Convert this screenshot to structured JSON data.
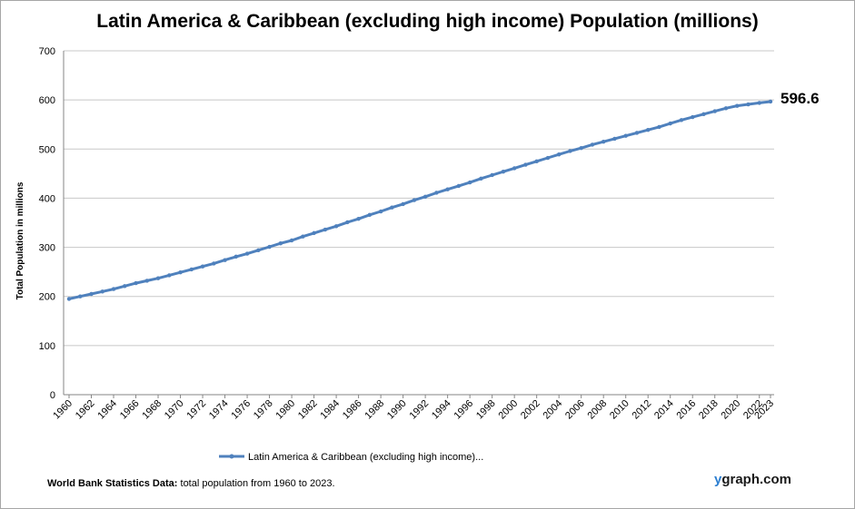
{
  "chart_data": {
    "type": "line",
    "title": "Latin America & Caribbean (excluding high income) Population (millions)",
    "xlabel": "",
    "ylabel": "Total Population  in millions",
    "ylim": [
      0,
      700
    ],
    "yticks": [
      0,
      100,
      200,
      300,
      400,
      500,
      600,
      700
    ],
    "xlim": [
      1960,
      2023
    ],
    "xtick_labels": [
      "1960",
      "1962",
      "1964",
      "1966",
      "1968",
      "1970",
      "1972",
      "1974",
      "1976",
      "1978",
      "1980",
      "1982",
      "1984",
      "1986",
      "1988",
      "1990",
      "1992",
      "1994",
      "1996",
      "1998",
      "2000",
      "2002",
      "2004",
      "2006",
      "2008",
      "2010",
      "2012",
      "2014",
      "2016",
      "2018",
      "2020",
      "2022",
      "2023"
    ],
    "grid": true,
    "legend_position": "bottom",
    "series": [
      {
        "name": "Latin America & Caribbean (excluding high income)...",
        "color": "#4f81bd",
        "x": [
          1960,
          1961,
          1962,
          1963,
          1964,
          1965,
          1966,
          1967,
          1968,
          1969,
          1970,
          1971,
          1972,
          1973,
          1974,
          1975,
          1976,
          1977,
          1978,
          1979,
          1980,
          1981,
          1982,
          1983,
          1984,
          1985,
          1986,
          1987,
          1988,
          1989,
          1990,
          1991,
          1992,
          1993,
          1994,
          1995,
          1996,
          1997,
          1998,
          1999,
          2000,
          2001,
          2002,
          2003,
          2004,
          2005,
          2006,
          2007,
          2008,
          2009,
          2010,
          2011,
          2012,
          2013,
          2014,
          2015,
          2016,
          2017,
          2018,
          2019,
          2020,
          2021,
          2022,
          2023
        ],
        "values": [
          195,
          200,
          205,
          210,
          215,
          221,
          227,
          232,
          237,
          243,
          249,
          255,
          261,
          267,
          274,
          281,
          287,
          294,
          301,
          308,
          314,
          322,
          329,
          336,
          343,
          351,
          358,
          366,
          373,
          381,
          388,
          396,
          403,
          411,
          418,
          425,
          432,
          440,
          447,
          454,
          461,
          468,
          475,
          482,
          489,
          496,
          502,
          509,
          515,
          521,
          527,
          533,
          539,
          545,
          552,
          559,
          565,
          571,
          577,
          583,
          588,
          591,
          594,
          596.6
        ]
      }
    ],
    "annotations": [
      {
        "text": "596.6",
        "x": 2023,
        "y": 596.6
      }
    ]
  },
  "footer": {
    "source_label": "World Bank Statistics Data:",
    "source_text": " total population from 1960 to 2023.",
    "brand_y": "y",
    "brand_rest": "graph.com"
  }
}
